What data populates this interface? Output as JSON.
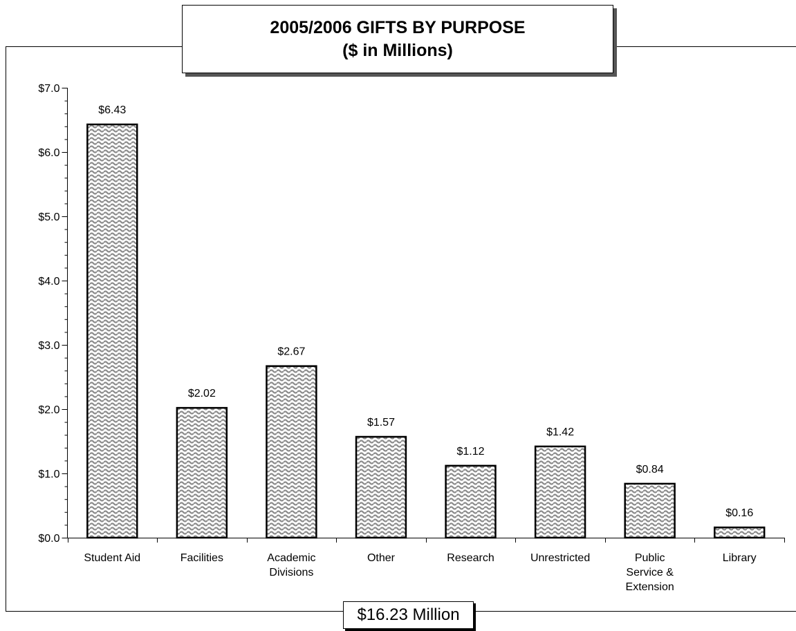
{
  "chart_data": {
    "type": "bar",
    "title": "2005/2006 GIFTS BY PURPOSE",
    "subtitle": "($ in Millions)",
    "categories": [
      [
        "Student Aid"
      ],
      [
        "Facilities"
      ],
      [
        "Academic",
        "Divisions"
      ],
      [
        "Other"
      ],
      [
        "Research"
      ],
      [
        "Unrestricted"
      ],
      [
        "Public",
        "Service &",
        "Extension"
      ],
      [
        "Library"
      ]
    ],
    "values": [
      6.43,
      2.02,
      2.67,
      1.57,
      1.12,
      1.42,
      0.84,
      0.16
    ],
    "data_labels": [
      "$6.43",
      "$2.02",
      "$2.67",
      "$1.57",
      "$1.12",
      "$1.42",
      "$0.84",
      "$0.16"
    ],
    "ylim": [
      0,
      7
    ],
    "yticks": [
      0,
      1,
      2,
      3,
      4,
      5,
      6,
      7
    ],
    "ytick_labels": [
      "$0.0",
      "$1.0",
      "$2.0",
      "$3.0",
      "$4.0",
      "$5.0",
      "$6.0",
      "$7.0"
    ],
    "xlabel": "",
    "ylabel": "",
    "grid": false,
    "legend": false,
    "bar_fill": "wave-pattern gray",
    "colors": {
      "bar_pattern_bg": "#ffffff",
      "bar_pattern_fg": "#8c8c8c",
      "bar_border": "#000000"
    }
  },
  "footer": {
    "total": "$16.23 Million"
  }
}
